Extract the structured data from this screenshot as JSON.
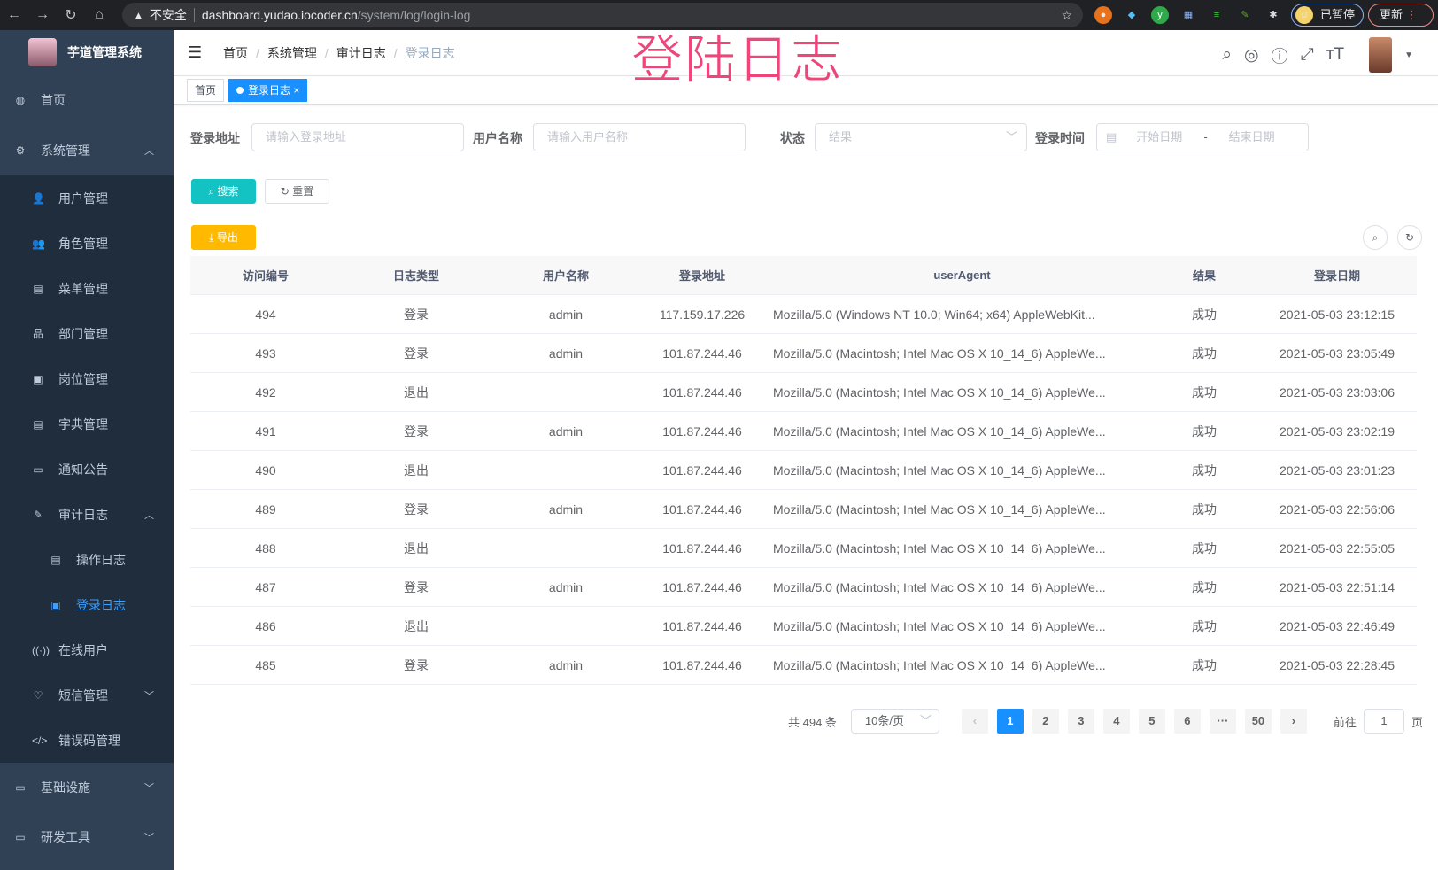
{
  "browser": {
    "warning": "不安全",
    "url_host": "dashboard.yudao.iocoder.cn",
    "url_path": "/system/log/login-log",
    "profile_label": "已暂停",
    "update_label": "更新"
  },
  "overlay_title": "登陆日志",
  "app": {
    "title": "芋道管理系统"
  },
  "sidebar": {
    "items": [
      {
        "label": "首页",
        "icon": "dashboard-icon"
      },
      {
        "label": "系统管理",
        "icon": "gear-icon",
        "expanded": true
      },
      {
        "label": "用户管理",
        "icon": "user-icon"
      },
      {
        "label": "角色管理",
        "icon": "peoples-icon"
      },
      {
        "label": "菜单管理",
        "icon": "tree-table-icon"
      },
      {
        "label": "部门管理",
        "icon": "tree-icon"
      },
      {
        "label": "岗位管理",
        "icon": "post-icon"
      },
      {
        "label": "字典管理",
        "icon": "dict-icon"
      },
      {
        "label": "通知公告",
        "icon": "message-icon"
      },
      {
        "label": "审计日志",
        "icon": "log-icon",
        "expanded": true
      },
      {
        "label": "操作日志",
        "icon": "form-icon"
      },
      {
        "label": "登录日志",
        "icon": "logininfor-icon",
        "active": true
      },
      {
        "label": "在线用户",
        "icon": "online-icon"
      },
      {
        "label": "短信管理",
        "icon": "validcode-icon"
      },
      {
        "label": "错误码管理",
        "icon": "code-icon"
      },
      {
        "label": "基础设施",
        "icon": "monitor-icon"
      },
      {
        "label": "研发工具",
        "icon": "tool-icon"
      }
    ]
  },
  "breadcrumb": [
    "首页",
    "系统管理",
    "审计日志",
    "登录日志"
  ],
  "tags": [
    {
      "label": "首页"
    },
    {
      "label": "登录日志",
      "active": true
    }
  ],
  "filters": {
    "address": {
      "label": "登录地址",
      "placeholder": "请输入登录地址"
    },
    "username": {
      "label": "用户名称",
      "placeholder": "请输入用户名称"
    },
    "status": {
      "label": "状态",
      "placeholder": "结果"
    },
    "time": {
      "label": "登录时间",
      "start": "开始日期",
      "sep": "-",
      "end": "结束日期"
    }
  },
  "buttons": {
    "search": "搜索",
    "reset": "重置",
    "export": "导出"
  },
  "table": {
    "headers": [
      "访问编号",
      "日志类型",
      "用户名称",
      "登录地址",
      "userAgent",
      "结果",
      "登录日期"
    ],
    "rows": [
      [
        "494",
        "登录",
        "admin",
        "117.159.17.226",
        "Mozilla/5.0 (Windows NT 10.0; Win64; x64) AppleWebKit...",
        "成功",
        "2021-05-03 23:12:15"
      ],
      [
        "493",
        "登录",
        "admin",
        "101.87.244.46",
        "Mozilla/5.0 (Macintosh; Intel Mac OS X 10_14_6) AppleWe...",
        "成功",
        "2021-05-03 23:05:49"
      ],
      [
        "492",
        "退出",
        "",
        "101.87.244.46",
        "Mozilla/5.0 (Macintosh; Intel Mac OS X 10_14_6) AppleWe...",
        "成功",
        "2021-05-03 23:03:06"
      ],
      [
        "491",
        "登录",
        "admin",
        "101.87.244.46",
        "Mozilla/5.0 (Macintosh; Intel Mac OS X 10_14_6) AppleWe...",
        "成功",
        "2021-05-03 23:02:19"
      ],
      [
        "490",
        "退出",
        "",
        "101.87.244.46",
        "Mozilla/5.0 (Macintosh; Intel Mac OS X 10_14_6) AppleWe...",
        "成功",
        "2021-05-03 23:01:23"
      ],
      [
        "489",
        "登录",
        "admin",
        "101.87.244.46",
        "Mozilla/5.0 (Macintosh; Intel Mac OS X 10_14_6) AppleWe...",
        "成功",
        "2021-05-03 22:56:06"
      ],
      [
        "488",
        "退出",
        "",
        "101.87.244.46",
        "Mozilla/5.0 (Macintosh; Intel Mac OS X 10_14_6) AppleWe...",
        "成功",
        "2021-05-03 22:55:05"
      ],
      [
        "487",
        "登录",
        "admin",
        "101.87.244.46",
        "Mozilla/5.0 (Macintosh; Intel Mac OS X 10_14_6) AppleWe...",
        "成功",
        "2021-05-03 22:51:14"
      ],
      [
        "486",
        "退出",
        "",
        "101.87.244.46",
        "Mozilla/5.0 (Macintosh; Intel Mac OS X 10_14_6) AppleWe...",
        "成功",
        "2021-05-03 22:46:49"
      ],
      [
        "485",
        "登录",
        "admin",
        "101.87.244.46",
        "Mozilla/5.0 (Macintosh; Intel Mac OS X 10_14_6) AppleWe...",
        "成功",
        "2021-05-03 22:28:45"
      ]
    ]
  },
  "pagination": {
    "total": "共 494 条",
    "page_size": "10条/页",
    "pages": [
      "1",
      "2",
      "3",
      "4",
      "5",
      "6",
      "···",
      "50"
    ],
    "current": "1",
    "goto_label": "前往",
    "goto_value": "1",
    "goto_suffix": "页"
  },
  "colors": {
    "sidebar": "#304156",
    "submenu": "#1f2d3d",
    "primary": "#1890ff",
    "search": "#13c2c2",
    "export": "#ffba00",
    "overlay": "#f0457a"
  }
}
